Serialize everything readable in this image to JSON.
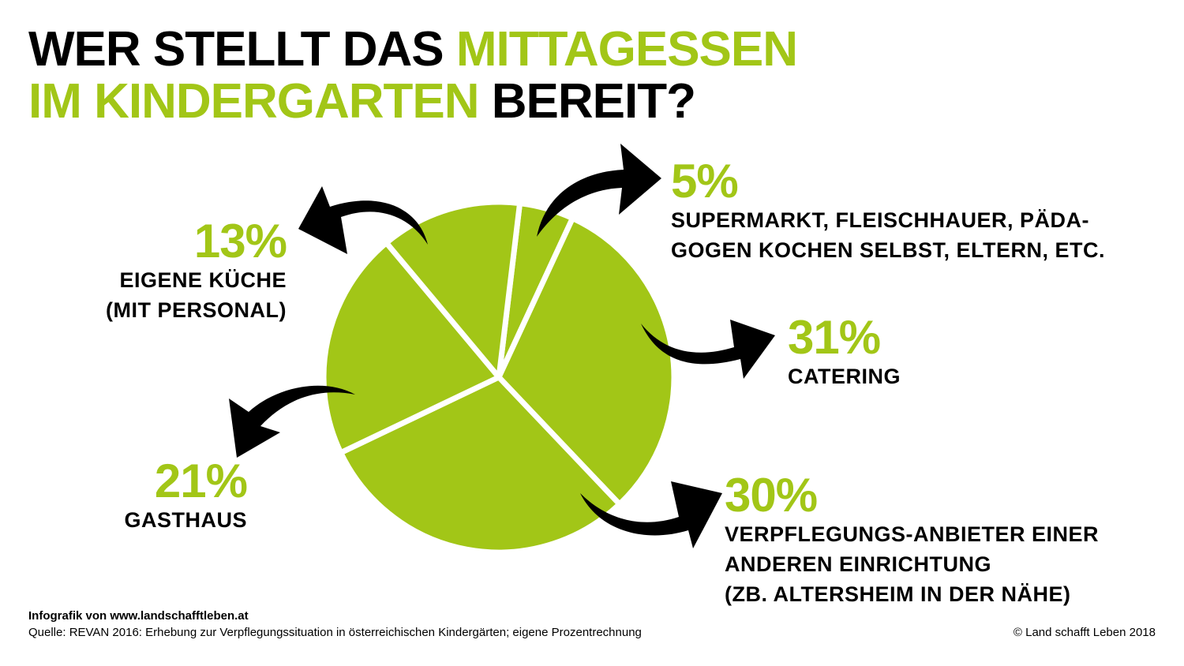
{
  "title": {
    "line1_black": "WER STELLT DAS ",
    "line1_green": "MITTAGESSEN",
    "line2_green": "IM KINDERGARTEN ",
    "line2_black": "BEREIT?"
  },
  "chart_data": {
    "type": "pie",
    "title": "WER STELLT DAS MITTAGESSEN IM KINDERGARTEN BEREIT?",
    "slices": [
      {
        "label": "SUPERMARKT, FLEISCHHAUER, PÄDAGOGEN KOCHEN SELBST, ELTERN, ETC.",
        "value": 5,
        "display": "5%"
      },
      {
        "label": "CATERING",
        "value": 31,
        "display": "31%"
      },
      {
        "label": "VERPFLEGUNGS-ANBIETER EINER ANDEREN EINRICHTUNG (ZB. ALTERSHEIM IN DER NÄHE)",
        "value": 30,
        "display": "30%"
      },
      {
        "label": "GASTHAUS",
        "value": 21,
        "display": "21%"
      },
      {
        "label": "EIGENE KÜCHE (MIT PERSONAL)",
        "value": 13,
        "display": "13%"
      }
    ],
    "colors": {
      "slice": "#a2c617",
      "separator": "#ffffff",
      "arrow": "#000000"
    }
  },
  "labels": {
    "s5": {
      "pct": "5%",
      "desc": "SUPERMARKT, FLEISCHHAUER, PÄDA-\nGOGEN KOCHEN SELBST, ELTERN, ETC."
    },
    "s31": {
      "pct": "31%",
      "desc": "CATERING"
    },
    "s30": {
      "pct": "30%",
      "desc": "VERPFLEGUNGS-ANBIETER EINER\nANDEREN EINRICHTUNG\n(ZB. ALTERSHEIM IN DER NÄHE)"
    },
    "s21": {
      "pct": "21%",
      "desc": "GASTHAUS"
    },
    "s13": {
      "pct": "13%",
      "desc": "EIGENE KÜCHE\n(MIT PERSONAL)"
    }
  },
  "footer": {
    "credit": "Infografik von www.landschafftleben.at",
    "source": "Quelle: REVAN 2016: Erhebung zur Verpflegungssituation in österreichischen Kindergärten; eigene Prozentrechnung",
    "copyright": "© Land schafft Leben 2018"
  },
  "colors": {
    "accent_green": "#a2c617",
    "text": "#000000",
    "background": "#ffffff"
  }
}
